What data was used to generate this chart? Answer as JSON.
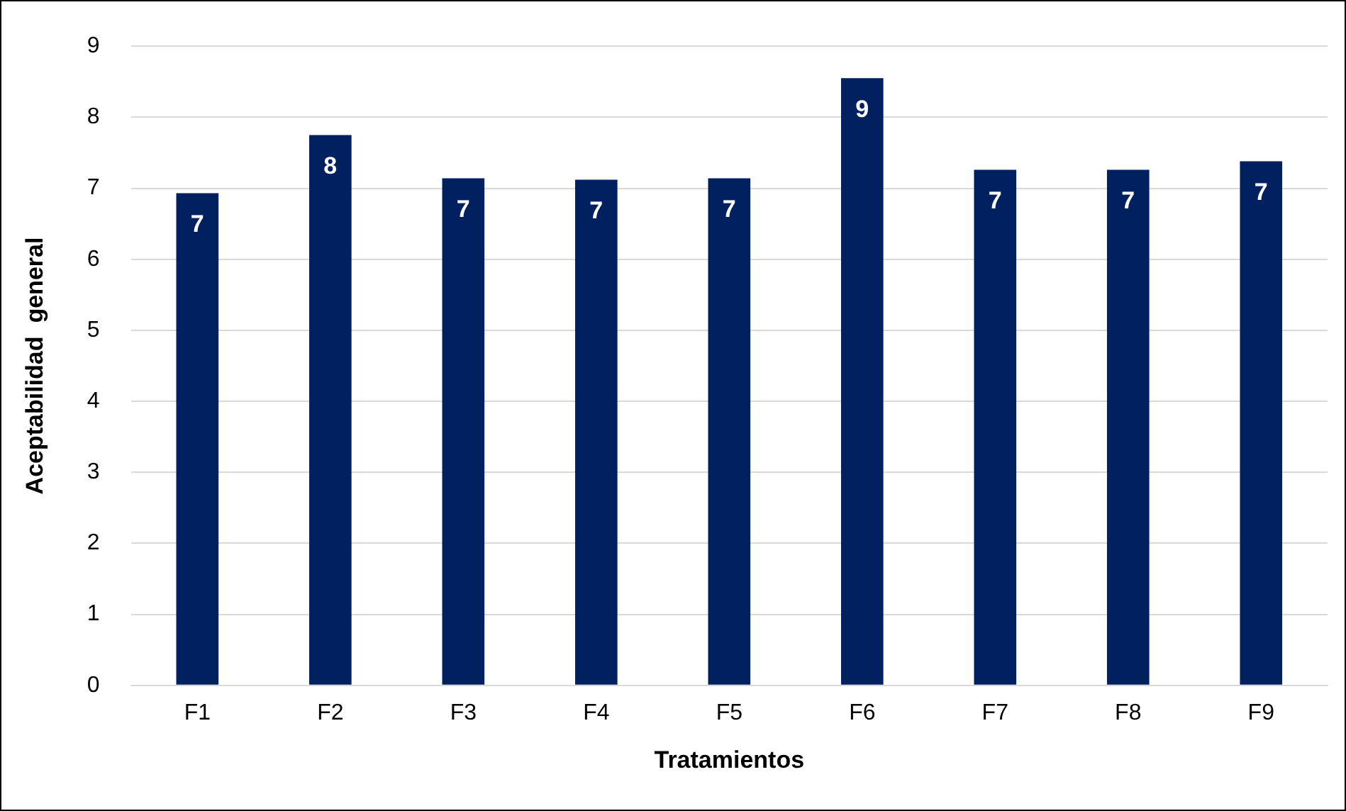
{
  "chart_data": {
    "type": "bar",
    "xlabel": "Tratamientos",
    "ylabel": "Aceptabilidad  general",
    "categories": [
      "F1",
      "F2",
      "F3",
      "F4",
      "F5",
      "F6",
      "F7",
      "F8",
      "F9"
    ],
    "values": [
      6.93,
      7.75,
      7.14,
      7.12,
      7.14,
      8.55,
      7.26,
      7.26,
      7.38
    ],
    "value_labels": [
      "7",
      "8",
      "7",
      "7",
      "7",
      "9",
      "7",
      "7",
      "7"
    ],
    "color": "#002060",
    "ylim": [
      0,
      9
    ],
    "yticks": [
      0,
      1,
      2,
      3,
      4,
      5,
      6,
      7,
      8,
      9
    ],
    "grid": "y",
    "legend": false
  }
}
